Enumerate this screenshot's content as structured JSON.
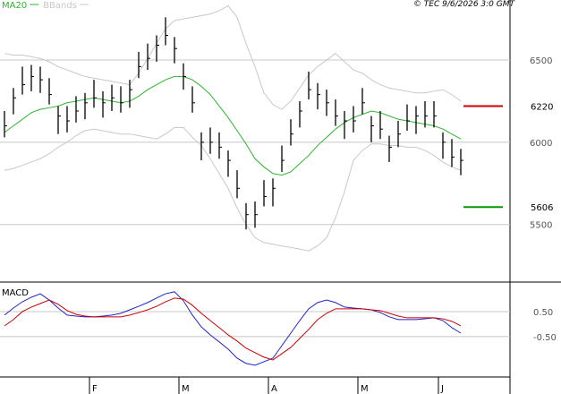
{
  "chart_data": [
    {
      "type": "ohlc",
      "timestamp": "© TEC 9/6/2026 3:0 GMT",
      "categories": [
        null,
        null,
        null,
        null,
        null,
        null,
        null,
        null,
        null,
        null,
        "F",
        null,
        null,
        null,
        null,
        null,
        null,
        null,
        null,
        null,
        "M",
        null,
        null,
        null,
        null,
        null,
        null,
        null,
        null,
        null,
        "A",
        null,
        null,
        null,
        null,
        null,
        null,
        null,
        null,
        null,
        "M",
        null,
        null,
        null,
        null,
        null,
        null,
        null,
        null,
        "J",
        null,
        null
      ],
      "high": [
        6190,
        6330,
        6460,
        6470,
        6460,
        6390,
        6220,
        6220,
        6280,
        6300,
        6380,
        6310,
        6350,
        6340,
        6380,
        6550,
        6600,
        6650,
        6760,
        6640,
        6480,
        6340,
        6060,
        6090,
        6060,
        5950,
        5830,
        5630,
        5640,
        5770,
        5780,
        5980,
        6140,
        6250,
        6430,
        6360,
        6320,
        6260,
        6190,
        6220,
        6330,
        6160,
        6190,
        6040,
        6130,
        6230,
        6220,
        6250,
        6250,
        6060,
        6020,
        5960
      ],
      "low": [
        6030,
        6170,
        6290,
        6310,
        6300,
        6230,
        6050,
        6060,
        6120,
        6140,
        6210,
        6150,
        6190,
        6180,
        6210,
        6390,
        6440,
        6490,
        6590,
        6480,
        6320,
        6180,
        5890,
        5930,
        5900,
        5790,
        5660,
        5470,
        5480,
        5610,
        5610,
        5820,
        5980,
        6090,
        6260,
        6200,
        6160,
        6100,
        6020,
        6060,
        6170,
        6000,
        6020,
        5880,
        5970,
        6070,
        6050,
        6090,
        6090,
        5900,
        5850,
        5800
      ],
      "close": [
        6100,
        6270,
        6350,
        6400,
        6380,
        6290,
        6160,
        6130,
        6190,
        6240,
        6270,
        6240,
        6270,
        6240,
        6320,
        6460,
        6510,
        6590,
        6650,
        6570,
        6400,
        6240,
        6000,
        6000,
        5970,
        5890,
        5720,
        5560,
        5560,
        5670,
        5720,
        5890,
        6050,
        6190,
        6320,
        6290,
        6240,
        6160,
        6130,
        6130,
        6240,
        6100,
        6080,
        5970,
        6050,
        6130,
        6160,
        6160,
        6160,
        6000,
        5910,
        5890
      ],
      "bar_color": "#000000",
      "series": [
        {
          "name": "MA20",
          "color": "#2db52d",
          "values": [
            6060,
            6100,
            6140,
            6180,
            6200,
            6210,
            6220,
            6240,
            6250,
            6260,
            6270,
            6260,
            6250,
            6240,
            6250,
            6280,
            6320,
            6350,
            6380,
            6400,
            6400,
            6380,
            6340,
            6290,
            6220,
            6150,
            6070,
            5990,
            5900,
            5850,
            5810,
            5800,
            5820,
            5870,
            5920,
            5980,
            6030,
            6080,
            6120,
            6150,
            6170,
            6190,
            6180,
            6160,
            6140,
            6130,
            6120,
            6110,
            6100,
            6080,
            6050,
            6020
          ]
        },
        {
          "name": "BBands",
          "color": "#c8c8c8",
          "upper": [
            6540,
            6530,
            6530,
            6520,
            6510,
            6490,
            6460,
            6440,
            6420,
            6400,
            6390,
            6380,
            6370,
            6360,
            6350,
            6420,
            6510,
            6600,
            6690,
            6740,
            6750,
            6760,
            6770,
            6780,
            6800,
            6830,
            6760,
            6600,
            6460,
            6300,
            6230,
            6200,
            6250,
            6330,
            6410,
            6460,
            6500,
            6540,
            6490,
            6440,
            6420,
            6380,
            6350,
            6330,
            6320,
            6310,
            6300,
            6300,
            6310,
            6320,
            6290,
            6250
          ],
          "lower": [
            5830,
            5840,
            5860,
            5880,
            5900,
            5930,
            5970,
            6000,
            6040,
            6070,
            6080,
            6070,
            6060,
            6050,
            6050,
            6040,
            6030,
            6020,
            6050,
            6090,
            6090,
            6030,
            5980,
            5900,
            5810,
            5720,
            5600,
            5500,
            5420,
            5390,
            5380,
            5370,
            5360,
            5350,
            5340,
            5370,
            5420,
            5540,
            5700,
            5890,
            5950,
            5990,
            5990,
            5980,
            5980,
            5970,
            5970,
            5950,
            5920,
            5880,
            5850,
            5830
          ]
        }
      ],
      "levels": [
        {
          "value": 6220,
          "color": "#cc0000"
        },
        {
          "value": 5606,
          "color": "#009900"
        }
      ],
      "ylim": [
        5150,
        6865
      ],
      "yticks": [
        5500,
        6000,
        6500
      ],
      "grid": true
    },
    {
      "type": "line",
      "title": "MACD",
      "series": [
        {
          "color": "#2222cc",
          "values": [
            0.36,
            0.64,
            0.89,
            1.07,
            1.21,
            0.96,
            0.64,
            0.36,
            0.32,
            0.29,
            0.29,
            0.32,
            0.36,
            0.43,
            0.57,
            0.71,
            0.86,
            1.04,
            1.21,
            1.29,
            0.93,
            0.36,
            -0.11,
            -0.43,
            -0.71,
            -1.0,
            -1.36,
            -1.57,
            -1.64,
            -1.5,
            -1.36,
            -0.86,
            -0.36,
            0.14,
            0.61,
            0.86,
            0.96,
            0.86,
            0.68,
            0.64,
            0.61,
            0.57,
            0.46,
            0.29,
            0.18,
            0.18,
            0.18,
            0.21,
            0.25,
            0.14,
            -0.14,
            -0.36
          ]
        },
        {
          "color": "#cc0000",
          "values": [
            -0.07,
            0.18,
            0.5,
            0.68,
            0.82,
            0.96,
            0.79,
            0.54,
            0.39,
            0.32,
            0.29,
            0.29,
            0.29,
            0.29,
            0.36,
            0.46,
            0.57,
            0.71,
            0.89,
            1.04,
            1.0,
            0.75,
            0.43,
            0.14,
            -0.14,
            -0.43,
            -0.68,
            -0.96,
            -1.14,
            -1.32,
            -1.43,
            -1.18,
            -0.93,
            -0.57,
            -0.21,
            0.18,
            0.43,
            0.61,
            0.61,
            0.61,
            0.61,
            0.57,
            0.54,
            0.43,
            0.32,
            0.25,
            0.25,
            0.25,
            0.25,
            0.21,
            0.11,
            -0.07
          ]
        }
      ],
      "ylim": [
        -2.79,
        1.57
      ],
      "yticks": [
        {
          "value": 0.5,
          "label": "0.50"
        },
        {
          "value": -0.5,
          "label": "-0.50"
        }
      ],
      "grid": true
    }
  ]
}
